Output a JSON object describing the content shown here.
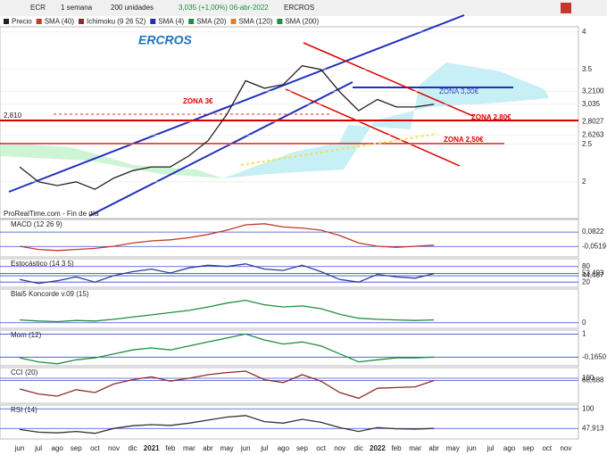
{
  "toolbar": {
    "symbol": "ECR",
    "period": "1 semana",
    "units": "200 unidades",
    "quote": "3,035 (+1,00%) 06-abr-2022",
    "name": "ERCROS"
  },
  "legend": [
    "Precio",
    "SMA (40)",
    "Ichimoku (9 26 52)",
    "SMA (4)",
    "SMA (20)",
    "SMA (120)",
    "SMA (200)"
  ],
  "annotations": {
    "title": "ERCROS",
    "zona3": "ZONA 3€",
    "zona330": "ZONA 3,30€",
    "zona280": "ZONA 2,80€",
    "zona250": "ZONA 2,50€",
    "level": "2,810",
    "source": "ProRealTime.com - Fin de día"
  },
  "chart_data": [
    {
      "type": "line",
      "title": "Precio",
      "color": "#222222",
      "categories": [
        "jun",
        "jul",
        "ago",
        "sep",
        "oct",
        "nov",
        "dic",
        "2021",
        "feb",
        "mar",
        "abr",
        "may",
        "jun",
        "jul",
        "ago",
        "sep",
        "oct",
        "nov",
        "dic",
        "2022",
        "feb",
        "mar",
        "abr",
        "may",
        "jun",
        "jul",
        "ago",
        "sep",
        "oct",
        "nov"
      ],
      "values": [
        2.2,
        2.0,
        1.95,
        2.0,
        1.9,
        2.05,
        2.15,
        2.2,
        2.2,
        2.35,
        2.55,
        2.9,
        3.35,
        3.25,
        3.3,
        3.55,
        3.5,
        3.2,
        2.95,
        3.1,
        3.0,
        3.0,
        3.035,
        null,
        null,
        null,
        null,
        null,
        null,
        null
      ],
      "ylim": [
        1.51,
        4.07
      ],
      "yticks": [
        2,
        2.5,
        3.5,
        4,
        {
          "value": 3.035,
          "label": "3,035"
        },
        {
          "value": 3.21,
          "label": "3,2100"
        },
        {
          "value": 2.8027,
          "label": "2,8027"
        },
        {
          "value": 2.6263,
          "label": "2,6263"
        }
      ]
    },
    {
      "type": "line",
      "title": "MACD (12 26 9)",
      "color": "#c0392b",
      "values": [
        -0.05,
        -0.08,
        -0.09,
        -0.08,
        -0.07,
        -0.05,
        -0.02,
        0.0,
        0.01,
        0.03,
        0.06,
        0.1,
        0.15,
        0.16,
        0.13,
        0.12,
        0.1,
        0.05,
        -0.02,
        -0.05,
        -0.06,
        -0.05,
        -0.04
      ],
      "ylim": [
        -0.15,
        0.2
      ],
      "yticks": [
        {
          "value": 0.0822,
          "label": "0,0822"
        },
        {
          "value": -0.0519,
          "label": "-0,0519"
        }
      ]
    },
    {
      "type": "line",
      "title": "Estocástico (14 3 5)",
      "color": "#2c3e9a",
      "values": [
        30,
        15,
        25,
        40,
        20,
        45,
        60,
        70,
        55,
        75,
        85,
        80,
        90,
        70,
        65,
        85,
        60,
        30,
        20,
        50,
        40,
        35,
        53
      ],
      "ylim": [
        0,
        110
      ],
      "yticks": [
        80,
        20,
        {
          "value": 53.493,
          "label": "53,493"
        },
        {
          "value": 44.467,
          "label": "44,467"
        }
      ]
    },
    {
      "type": "line",
      "title": "Blai5 Koncorde v.09 (15)",
      "color": "#1e8e3e",
      "values": [
        5,
        3,
        2,
        4,
        3,
        6,
        10,
        14,
        18,
        22,
        28,
        35,
        40,
        32,
        28,
        30,
        25,
        15,
        8,
        6,
        5,
        4,
        5
      ],
      "ylim": [
        -10,
        60
      ],
      "yticks": [
        0
      ]
    },
    {
      "type": "line",
      "title": "Mom (12)",
      "color": "#1e8e3e",
      "values": [
        -0.2,
        -0.4,
        -0.5,
        -0.3,
        -0.2,
        0.0,
        0.2,
        0.3,
        0.2,
        0.4,
        0.6,
        0.8,
        1.0,
        0.7,
        0.5,
        0.6,
        0.4,
        0.0,
        -0.4,
        -0.3,
        -0.2,
        -0.2,
        -0.165
      ],
      "ylim": [
        -0.6,
        1.2
      ],
      "yticks": [
        1,
        {
          "value": -0.165,
          "label": "-0,1650"
        }
      ]
    },
    {
      "type": "line",
      "title": "CCI (20)",
      "color": "#8e2a2a",
      "values": [
        -50,
        -120,
        -150,
        -60,
        -100,
        20,
        80,
        120,
        60,
        100,
        150,
        180,
        200,
        80,
        40,
        150,
        60,
        -100,
        -180,
        -40,
        -30,
        -20,
        69
      ],
      "ylim": [
        -250,
        250
      ],
      "yticks": [
        100,
        {
          "value": 68.888,
          "label": "68,888"
        }
      ]
    },
    {
      "type": "line",
      "title": "RSI (14)",
      "color": "#333333",
      "values": [
        45,
        38,
        36,
        40,
        35,
        48,
        55,
        58,
        56,
        62,
        70,
        78,
        82,
        66,
        62,
        72,
        64,
        50,
        40,
        50,
        47,
        46,
        48
      ],
      "ylim": [
        20,
        110
      ],
      "yticks": [
        100,
        {
          "value": 47.913,
          "label": "47,913"
        }
      ]
    }
  ]
}
